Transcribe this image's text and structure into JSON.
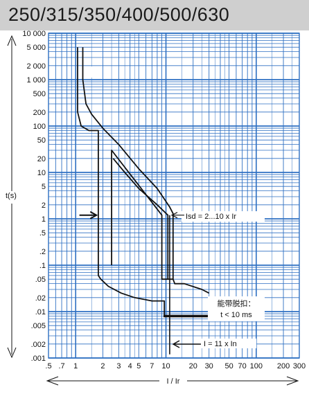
{
  "chart_data": {
    "type": "line",
    "title": "250/315/350/400/500/630",
    "xlabel": "I / Ir",
    "ylabel": "t(s)",
    "xscale": "log",
    "yscale": "log",
    "xlim": [
      0.5,
      300
    ],
    "ylim": [
      0.001,
      10000
    ],
    "grid": true,
    "x_tick_labels": [
      ".5",
      ".7",
      "1",
      "2",
      "3",
      "4",
      "5",
      "7",
      "10",
      "20",
      "30",
      "50",
      "70",
      "100",
      "200",
      "300"
    ],
    "x_tick_values": [
      0.5,
      0.7,
      1,
      2,
      3,
      4,
      5,
      7,
      10,
      20,
      30,
      50,
      70,
      100,
      200,
      300
    ],
    "y_tick_labels": [
      "10 000",
      "5 000",
      "2 000",
      "1 000",
      "500",
      "200",
      "100",
      "50",
      "20",
      "10",
      "5",
      "2",
      "1",
      ".5",
      ".2",
      ".1",
      ".05",
      ".02",
      ".01",
      ".005",
      ".002",
      ".001"
    ],
    "y_tick_values": [
      10000,
      5000,
      2000,
      1000,
      500,
      200,
      100,
      50,
      20,
      10,
      5,
      2,
      1,
      0.5,
      0.2,
      0.1,
      0.05,
      0.02,
      0.01,
      0.005,
      0.002,
      0.001
    ],
    "series": [
      {
        "id": "lt-lower",
        "x": [
          1.05,
          1.05,
          1.15,
          1.4,
          1.7,
          1.78,
          1.78,
          1.9,
          2.3,
          3.2,
          4.5,
          6,
          7,
          8,
          8.5,
          9,
          9.6,
          9.6,
          12,
          20,
          30
        ],
        "y": [
          5000,
          200,
          100,
          80,
          80,
          80,
          0.06,
          0.05,
          0.035,
          0.025,
          0.02,
          0.018,
          0.017,
          0.017,
          0.017,
          0.017,
          0.017,
          0.008,
          0.008,
          0.008,
          0.008
        ]
      },
      {
        "id": "lt-upper",
        "x": [
          1.2,
          1.2,
          1.3,
          1.5,
          2,
          3,
          5,
          8,
          11,
          12,
          12,
          12.5,
          16,
          25,
          30
        ],
        "y": [
          5000,
          1000,
          300,
          180,
          90,
          40,
          12,
          4.5,
          1.8,
          1.3,
          0.05,
          0.04,
          0.04,
          0.03,
          0.025
        ]
      },
      {
        "id": "st-lower",
        "x": [
          2.5,
          2.5,
          9,
          9,
          9.3,
          12
        ],
        "y": [
          0.1,
          30,
          1.2,
          0.05,
          0.05,
          0.05
        ]
      },
      {
        "id": "st-upper",
        "x": [
          2.6,
          3.5,
          5,
          8,
          10.5,
          10.5
        ],
        "y": [
          20,
          10,
          4.5,
          2,
          1.2,
          0.05
        ]
      },
      {
        "id": "inst-trip",
        "x": [
          9.4,
          35
        ],
        "y": [
          0.008,
          0.008
        ]
      }
    ],
    "annotations": [
      {
        "text": "Isd = 2...10 x Ir"
      },
      {
        "text": "能带脱扣："
      },
      {
        "text": "t < 10 ms"
      },
      {
        "text": "I = 11 x In"
      }
    ]
  }
}
